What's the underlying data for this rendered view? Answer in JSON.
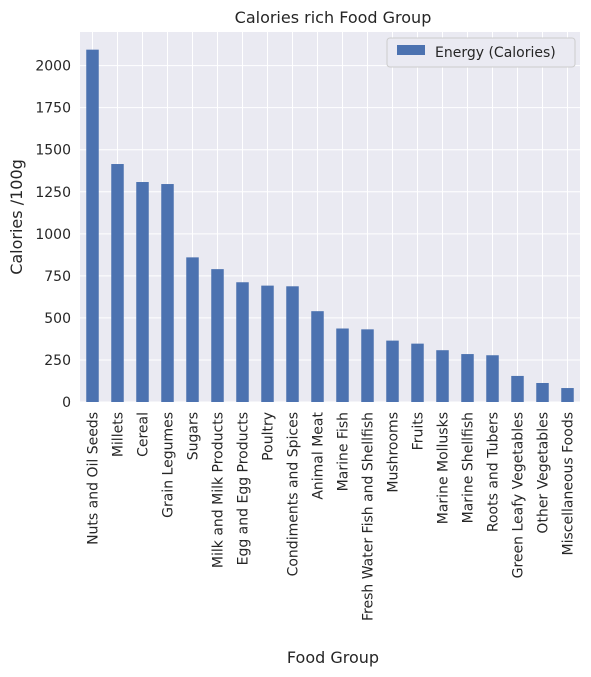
{
  "chart_data": {
    "type": "bar",
    "title": "Calories rich Food Group",
    "xlabel": "Food Group",
    "ylabel": "Calories /100g",
    "ylim": [
      0,
      2200
    ],
    "yticks": [
      0,
      250,
      500,
      750,
      1000,
      1250,
      1500,
      1750,
      2000
    ],
    "grid": true,
    "legend_position": "top-right",
    "categories": [
      "Nuts and Oil Seeds",
      "Millets",
      "Cereal",
      "Grain Legumes",
      "Sugars",
      "Milk and Milk Products",
      "Egg and Egg Products",
      "Poultry",
      "Condiments and Spices",
      "Animal Meat",
      "Marine Fish",
      "Fresh Water Fish and Shellfish",
      "Mushrooms",
      "Fruits",
      "Marine Mollusks",
      "Marine Shellfish",
      "Roots and Tubers",
      "Green Leafy Vegetables",
      "Other Vegetables",
      "Miscellaneous Foods"
    ],
    "series": [
      {
        "name": "Energy (Calories)",
        "color": "#4c72b0",
        "values": [
          2095,
          1415,
          1308,
          1296,
          860,
          790,
          712,
          692,
          688,
          540,
          437,
          432,
          365,
          347,
          308,
          285,
          278,
          155,
          113,
          83
        ]
      }
    ]
  },
  "colors": {
    "plot_background": "#eaeaf2",
    "grid": "#ffffff",
    "bar": "#4c72b0"
  }
}
